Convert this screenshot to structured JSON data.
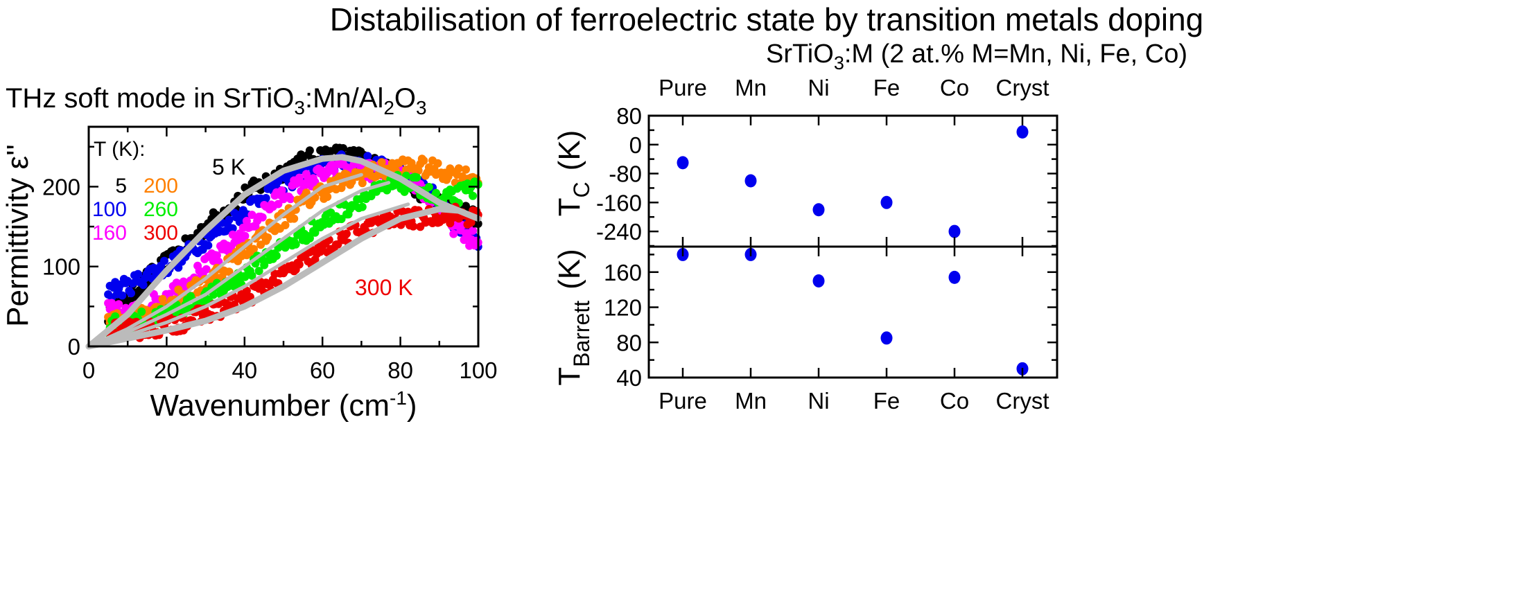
{
  "title": "Distabilisation of ferroelectric state by transition metals doping",
  "chart_data": [
    {
      "type": "scatter",
      "title_parts": [
        "THz soft mode in SrTiO",
        "3",
        ":Mn/Al",
        "2",
        "O",
        "3"
      ],
      "xlabel": "Wavenumber  (cm",
      "xlabel_sup": "-1",
      "xlabel_close": ")",
      "ylabel": "Permittivity  ε''",
      "xlim": [
        0,
        100
      ],
      "ylim": [
        0,
        275
      ],
      "xticks": [
        "0",
        "20",
        "40",
        "60",
        "80",
        "100"
      ],
      "yticks": [
        "0",
        "100",
        "200"
      ],
      "grid": false,
      "legend_title": "T (K):",
      "legend_placement": "top-left",
      "series": [
        {
          "name": "5",
          "color": "#000000",
          "x": [
            5,
            10,
            15,
            20,
            25,
            30,
            35,
            40,
            45,
            50,
            55,
            60,
            65,
            70,
            75,
            80,
            85,
            90,
            95,
            100
          ],
          "y": [
            40,
            60,
            85,
            105,
            125,
            150,
            170,
            190,
            205,
            220,
            232,
            240,
            240,
            235,
            225,
            210,
            195,
            180,
            170,
            160
          ]
        },
        {
          "name": "100",
          "color": "#0000ee",
          "x": [
            5,
            10,
            15,
            20,
            25,
            30,
            35,
            40,
            45,
            50,
            55,
            60,
            65,
            70,
            75,
            80,
            85,
            90,
            95,
            100
          ],
          "y": [
            70,
            75,
            90,
            100,
            115,
            135,
            150,
            170,
            190,
            205,
            215,
            225,
            230,
            230,
            225,
            215,
            205,
            180,
            150,
            130
          ]
        },
        {
          "name": "160",
          "color": "#ff00ff",
          "x": [
            5,
            10,
            15,
            20,
            25,
            30,
            35,
            40,
            45,
            50,
            55,
            60,
            65,
            70,
            75,
            80,
            85,
            90,
            95,
            100
          ],
          "y": [
            45,
            40,
            50,
            65,
            80,
            100,
            120,
            145,
            170,
            190,
            205,
            215,
            220,
            220,
            220,
            215,
            200,
            170,
            145,
            130
          ]
        },
        {
          "name": "200",
          "color": "#ff8000",
          "x": [
            5,
            10,
            15,
            20,
            25,
            30,
            35,
            40,
            45,
            50,
            55,
            60,
            65,
            70,
            75,
            80,
            85,
            90,
            95,
            100
          ],
          "y": [
            30,
            35,
            45,
            55,
            65,
            80,
            100,
            120,
            140,
            160,
            180,
            195,
            205,
            215,
            220,
            225,
            225,
            220,
            215,
            210
          ]
        },
        {
          "name": "260",
          "color": "#00ee00",
          "x": [
            5,
            10,
            15,
            20,
            25,
            30,
            35,
            40,
            45,
            50,
            55,
            60,
            65,
            70,
            75,
            80,
            85,
            90,
            95,
            100
          ],
          "y": [
            25,
            30,
            35,
            40,
            50,
            60,
            75,
            90,
            110,
            125,
            140,
            155,
            170,
            185,
            195,
            205,
            200,
            180,
            190,
            200
          ]
        },
        {
          "name": "300",
          "color": "#ee0000",
          "x": [
            5,
            10,
            15,
            20,
            25,
            30,
            35,
            40,
            45,
            50,
            55,
            60,
            65,
            70,
            75,
            80,
            85,
            90,
            95,
            100
          ],
          "y": [
            20,
            20,
            22,
            25,
            32,
            40,
            50,
            60,
            75,
            90,
            105,
            120,
            135,
            148,
            155,
            160,
            160,
            165,
            165,
            160
          ]
        }
      ],
      "fits": [
        {
          "temp": "5",
          "color": "#bbbbbb",
          "x": [
            0,
            10,
            20,
            30,
            40,
            50,
            60,
            65,
            70,
            80,
            90,
            100
          ],
          "y": [
            0,
            40,
            95,
            145,
            190,
            220,
            235,
            237,
            232,
            210,
            180,
            160
          ]
        },
        {
          "temp": "160",
          "color": "#bbbbbb",
          "x": [
            0,
            10,
            20,
            30,
            40,
            50,
            60,
            70
          ],
          "y": [
            0,
            22,
            50,
            85,
            125,
            165,
            200,
            215
          ]
        },
        {
          "temp": "200",
          "color": "#bbbbbb",
          "x": [
            0,
            10,
            20,
            30,
            40,
            50,
            60,
            70,
            77
          ],
          "y": [
            0,
            18,
            40,
            65,
            100,
            135,
            170,
            195,
            205
          ]
        },
        {
          "temp": "260",
          "color": "#bbbbbb",
          "x": [
            0,
            10,
            20,
            30,
            40,
            50,
            60,
            70,
            82
          ],
          "y": [
            0,
            14,
            30,
            50,
            75,
            105,
            135,
            160,
            178
          ]
        },
        {
          "temp": "300",
          "color": "#bbbbbb",
          "x": [
            0,
            10,
            20,
            30,
            40,
            50,
            60,
            70,
            80,
            90,
            95,
            100
          ],
          "y": [
            0,
            10,
            20,
            32,
            50,
            75,
            105,
            135,
            160,
            172,
            170,
            160
          ]
        }
      ],
      "annotations": [
        {
          "text": "5 K",
          "color": "#000000"
        },
        {
          "text": "300 K",
          "color": "#ee0000"
        }
      ]
    },
    {
      "type": "scatter",
      "title_parts": [
        "SrTiO",
        "3",
        ":M (2 at.% M=Mn, Ni, Fe, Co)"
      ],
      "categories": [
        "Pure",
        "Mn",
        "Ni",
        "Fe",
        "Co",
        "Cryst"
      ],
      "marker_color": "#0000ee",
      "panels": [
        {
          "ylabel": "T",
          "ylabel_sub": "C",
          "ylabel_unit": "(K)",
          "ylim": [
            -282,
            80
          ],
          "yticks": [
            "80",
            "0",
            "-80",
            "-160",
            "-240"
          ],
          "values": [
            -50,
            -100,
            -180,
            -160,
            -240,
            35
          ]
        },
        {
          "ylabel": "T",
          "ylabel_sub": "Barrett",
          "ylabel_unit": "(K)",
          "ylim": [
            40,
            189
          ],
          "yticks": [
            "160",
            "120",
            "80",
            "40"
          ],
          "values": [
            180,
            180,
            150,
            85,
            154,
            50
          ]
        }
      ]
    }
  ]
}
